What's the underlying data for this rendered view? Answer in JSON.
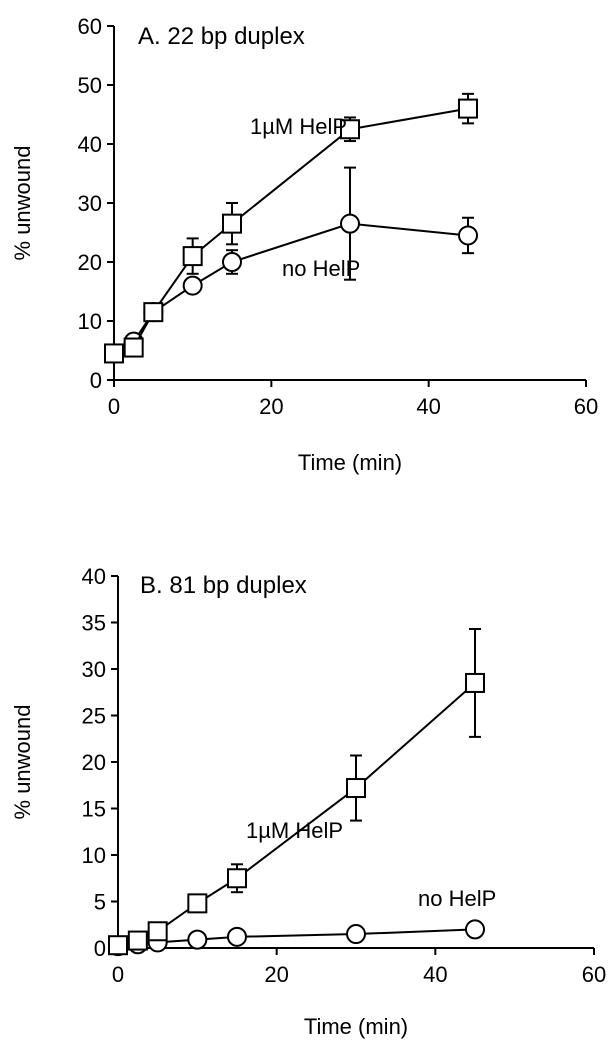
{
  "chart_data": [
    {
      "type": "line",
      "title": "A.  22 bp duplex",
      "xlabel": "Time (min)",
      "ylabel": "% unwound",
      "xlim": [
        0,
        60
      ],
      "ylim": [
        0,
        60
      ],
      "xticks": [
        0,
        20,
        40,
        60
      ],
      "yticks": [
        0,
        10,
        20,
        30,
        40,
        50,
        60
      ],
      "grid": false,
      "series": [
        {
          "name": "1µM HelP",
          "marker": "square",
          "x": [
            0,
            2.5,
            5,
            10,
            15,
            30,
            45
          ],
          "y": [
            4.5,
            5.5,
            11.5,
            21,
            26.5,
            42.5,
            46
          ],
          "err": [
            0.5,
            0.8,
            1.2,
            3.0,
            3.5,
            2.0,
            2.5
          ]
        },
        {
          "name": "no HelP",
          "marker": "circle",
          "x": [
            0,
            2.5,
            5,
            10,
            15,
            30,
            45
          ],
          "y": [
            4.5,
            6.5,
            11.5,
            16,
            20,
            26.5,
            24.5
          ],
          "err": [
            0.5,
            0.8,
            1.2,
            1.0,
            2.0,
            9.5,
            3.0
          ]
        }
      ]
    },
    {
      "type": "line",
      "title": "B.  81 bp duplex",
      "xlabel": "Time (min)",
      "ylabel": "% unwound",
      "xlim": [
        0,
        60
      ],
      "ylim": [
        0,
        40
      ],
      "xticks": [
        0,
        20,
        40,
        60
      ],
      "yticks": [
        0,
        5,
        10,
        15,
        20,
        25,
        30,
        35,
        40
      ],
      "grid": false,
      "series": [
        {
          "name": "1µM HelP",
          "marker": "square",
          "x": [
            0,
            2.5,
            5,
            10,
            15,
            30,
            45
          ],
          "y": [
            0.3,
            0.8,
            1.8,
            4.8,
            7.5,
            17.2,
            28.5
          ],
          "err": [
            0.2,
            0.3,
            0.4,
            0.5,
            1.5,
            3.5,
            5.8
          ]
        },
        {
          "name": "no HelP",
          "marker": "circle",
          "x": [
            0,
            2.5,
            5,
            10,
            15,
            30,
            45
          ],
          "y": [
            0.2,
            0.4,
            0.6,
            0.9,
            1.2,
            1.5,
            2.0
          ],
          "err": [
            0.1,
            0.1,
            0.2,
            0.2,
            0.2,
            0.2,
            0.3
          ]
        }
      ]
    }
  ]
}
